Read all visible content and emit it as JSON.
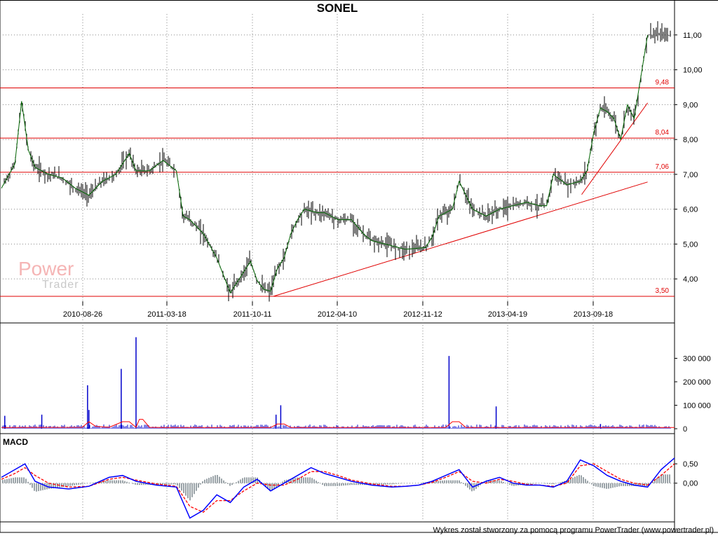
{
  "title": "SONEL",
  "macd_label": "MACD",
  "footer": "Wykres został stworzony za pomocą programu PowerTrader (www.powertrader.pl)",
  "logo": {
    "line1": "Power",
    "line2": "Trader"
  },
  "colors": {
    "price": "#006400",
    "ohlc": "#000000",
    "levels": "#e00000",
    "volume": "#0000cc",
    "volume_avg": "#ff0000",
    "macd": "#0000ff",
    "signal": "#ff0000",
    "histogram": "#9aa3a8",
    "grid": "#888888"
  },
  "chart_data": [
    {
      "type": "line",
      "name": "price",
      "x_ticks": [
        "2010-08-26",
        "2011-03-18",
        "2011-10-11",
        "2012-04-10",
        "2012-11-12",
        "2013-04-19",
        "2013-09-18"
      ],
      "y_ticks": [
        "4,00",
        "5,00",
        "6,00",
        "7,00",
        "8,00",
        "9,00",
        "10,00",
        "11,00"
      ],
      "ylim": [
        3.4,
        11.6
      ],
      "levels": [
        {
          "value": 9.48,
          "label": "9,48"
        },
        {
          "value": 8.04,
          "label": "8,04"
        },
        {
          "value": 7.06,
          "label": "7,06"
        },
        {
          "value": 3.5,
          "label": "3,50"
        }
      ],
      "trendlines": [
        {
          "from": [
            0.404,
            3.5
          ],
          "to": [
            0.96,
            6.78
          ]
        },
        {
          "from": [
            0.862,
            6.42
          ],
          "to": [
            0.96,
            9.05
          ]
        }
      ],
      "x": [
        0.0,
        0.02,
        0.03,
        0.04,
        0.05,
        0.07,
        0.09,
        0.11,
        0.13,
        0.15,
        0.17,
        0.19,
        0.2,
        0.22,
        0.24,
        0.26,
        0.27,
        0.28,
        0.3,
        0.32,
        0.34,
        0.35,
        0.37,
        0.38,
        0.39,
        0.4,
        0.41,
        0.42,
        0.43,
        0.44,
        0.45,
        0.47,
        0.48,
        0.5,
        0.52,
        0.54,
        0.55,
        0.57,
        0.6,
        0.63,
        0.64,
        0.65,
        0.67,
        0.68,
        0.7,
        0.72,
        0.74,
        0.76,
        0.78,
        0.8,
        0.81,
        0.82,
        0.84,
        0.86,
        0.87,
        0.88,
        0.89,
        0.9,
        0.91,
        0.92,
        0.93,
        0.94,
        0.95,
        0.96
      ],
      "values": [
        6.6,
        7.3,
        9.1,
        7.7,
        7.2,
        7.0,
        6.9,
        6.6,
        6.4,
        6.8,
        7.0,
        7.6,
        7.1,
        7.1,
        7.4,
        7.1,
        5.8,
        5.7,
        5.3,
        4.6,
        3.6,
        3.9,
        4.5,
        3.95,
        3.7,
        3.65,
        4.3,
        4.6,
        5.3,
        5.7,
        6.0,
        5.9,
        5.9,
        5.7,
        5.7,
        5.25,
        5.1,
        5.0,
        4.85,
        4.9,
        5.2,
        5.8,
        6.0,
        6.8,
        6.0,
        5.8,
        6.0,
        6.1,
        6.2,
        6.1,
        6.1,
        7.0,
        6.7,
        6.8,
        7.1,
        8.2,
        8.9,
        8.8,
        8.6,
        8.0,
        9.0,
        8.6,
        9.8,
        11.0
      ]
    },
    {
      "type": "bar",
      "name": "volume",
      "y_ticks": [
        "0",
        "100 000",
        "200 000",
        "300 000"
      ],
      "ylim": [
        0,
        400000
      ],
      "spikes": [
        {
          "x": 0.005,
          "value": 55000
        },
        {
          "x": 0.06,
          "value": 60000
        },
        {
          "x": 0.128,
          "value": 185000
        },
        {
          "x": 0.13,
          "value": 80000
        },
        {
          "x": 0.178,
          "value": 255000
        },
        {
          "x": 0.2,
          "value": 390000
        },
        {
          "x": 0.415,
          "value": 100000
        },
        {
          "x": 0.408,
          "value": 60000
        },
        {
          "x": 0.665,
          "value": 310000
        },
        {
          "x": 0.735,
          "value": 95000
        },
        {
          "x": 0.89,
          "value": 20000
        }
      ],
      "avg_x": [
        0.0,
        0.12,
        0.13,
        0.14,
        0.16,
        0.18,
        0.19,
        0.2,
        0.205,
        0.21,
        0.22,
        0.24,
        0.4,
        0.41,
        0.42,
        0.43,
        0.66,
        0.67,
        0.68,
        0.69,
        1.0
      ],
      "avg_values": [
        5000,
        6000,
        30000,
        10000,
        6000,
        30000,
        30000,
        6000,
        40000,
        40000,
        6000,
        5000,
        5000,
        20000,
        20000,
        5000,
        5000,
        30000,
        30000,
        5000,
        5000
      ]
    },
    {
      "type": "line",
      "name": "macd",
      "y_ticks": [
        "0,00",
        "0,50"
      ],
      "ylim": [
        -1.0,
        0.9
      ],
      "x": [
        0.0,
        0.02,
        0.035,
        0.05,
        0.07,
        0.1,
        0.13,
        0.16,
        0.18,
        0.2,
        0.23,
        0.26,
        0.28,
        0.3,
        0.32,
        0.34,
        0.36,
        0.38,
        0.4,
        0.42,
        0.44,
        0.46,
        0.48,
        0.5,
        0.52,
        0.55,
        0.58,
        0.6,
        0.62,
        0.64,
        0.66,
        0.68,
        0.7,
        0.72,
        0.74,
        0.76,
        0.78,
        0.8,
        0.82,
        0.84,
        0.86,
        0.88,
        0.9,
        0.92,
        0.94,
        0.96,
        0.98,
        1.0
      ],
      "values": [
        0.15,
        0.35,
        0.5,
        0.05,
        -0.1,
        -0.15,
        -0.08,
        0.15,
        0.2,
        0.05,
        -0.05,
        -0.1,
        -0.9,
        -0.7,
        -0.3,
        -0.5,
        -0.1,
        0.1,
        -0.2,
        0.0,
        0.2,
        0.4,
        0.25,
        0.15,
        0.05,
        -0.05,
        -0.1,
        -0.08,
        -0.05,
        0.05,
        0.2,
        0.35,
        -0.1,
        0.05,
        0.15,
        0.0,
        -0.05,
        -0.05,
        -0.1,
        0.05,
        0.6,
        0.45,
        0.2,
        0.05,
        -0.05,
        -0.1,
        0.35,
        0.65
      ],
      "signal": [
        0.1,
        0.25,
        0.4,
        0.2,
        0.0,
        -0.1,
        -0.08,
        0.1,
        0.15,
        0.08,
        -0.02,
        -0.08,
        -0.6,
        -0.75,
        -0.45,
        -0.45,
        -0.2,
        0.0,
        -0.05,
        -0.05,
        0.1,
        0.3,
        0.3,
        0.2,
        0.08,
        -0.02,
        -0.08,
        -0.08,
        -0.05,
        0.02,
        0.15,
        0.3,
        0.05,
        0.0,
        0.1,
        0.05,
        -0.03,
        -0.05,
        -0.08,
        0.0,
        0.45,
        0.5,
        0.3,
        0.1,
        0.0,
        -0.05,
        0.2,
        0.5
      ]
    }
  ]
}
